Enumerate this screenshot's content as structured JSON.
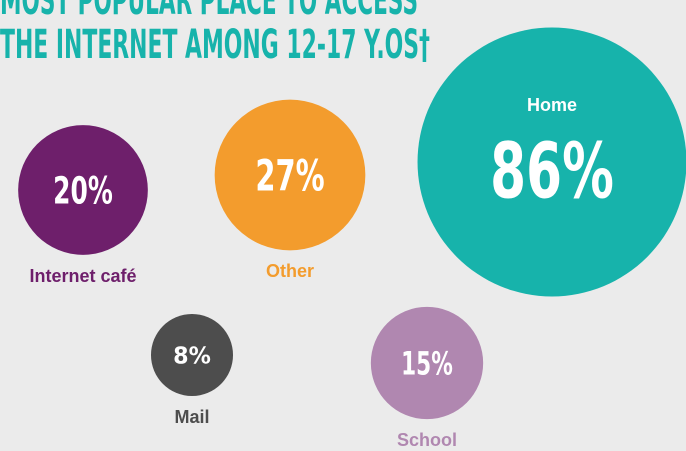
{
  "chart_data": {
    "type": "bubble",
    "title": [
      "MOST POPULAR PLACE TO ACCESS",
      "THE INTERNET AMONG 12-17 Y.OS†"
    ],
    "categories": [
      "Internet café",
      "Other",
      "Home",
      "Mail",
      "School"
    ],
    "values": [
      20,
      27,
      86,
      8,
      15
    ],
    "value_labels": [
      "20%",
      "27%",
      "86%",
      "8%",
      "15%"
    ],
    "colors": [
      "#6e1f6b",
      "#f39c2d",
      "#17b3ab",
      "#4d4d4d",
      "#b087b0"
    ]
  }
}
